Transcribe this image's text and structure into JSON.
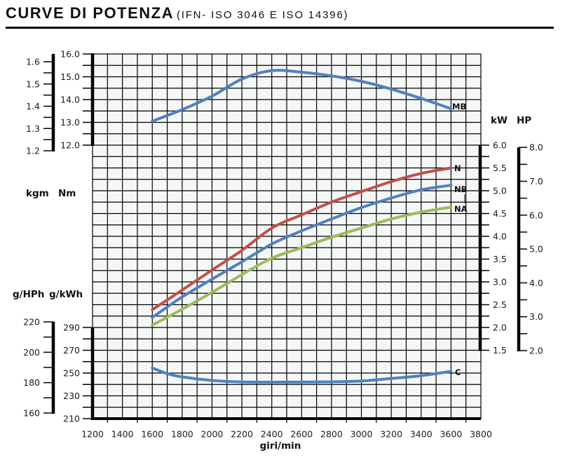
{
  "title": {
    "main": "CURVE DI POTENZA",
    "sub": "(IFN- ISO 3046 E ISO 14396)"
  },
  "chart_data": {
    "type": "line",
    "title": "CURVE DI POTENZA (IFN- ISO 3046 E ISO 14396)",
    "xlabel": "giri/min",
    "xlim": [
      1200,
      3800
    ],
    "x_ticks": [
      "1200",
      "1400",
      "1600",
      "1800",
      "2000",
      "2200",
      "2400",
      "2600",
      "2800",
      "3000",
      "3200",
      "3400",
      "3600",
      "3800"
    ],
    "grid": true,
    "colors": {
      "N": "#c0504d",
      "NB": "#4f81bd",
      "NA": "#9bbb59",
      "MB": "#4f81bd",
      "C": "#4f81bd",
      "grid_bg": "#f5f6f6"
    },
    "axes": {
      "torque_nm": {
        "label": "Nm",
        "ylim": [
          12.0,
          16.0
        ],
        "ticks": [
          "16.0",
          "15.0",
          "14.0",
          "13.0",
          "12.0"
        ]
      },
      "torque_kgm": {
        "label": "kgm",
        "ylim": [
          1.2,
          1.6
        ],
        "ticks": [
          "1.6",
          "1.5",
          "1.4",
          "1.3",
          "1.2"
        ]
      },
      "power_kw": {
        "label": "kW",
        "ylim": [
          1.5,
          6.0
        ],
        "ticks": [
          "6.0",
          "5.5",
          "5.0",
          "4.5",
          "4.0",
          "3.5",
          "3.0",
          "2.5",
          "2.0",
          "1.5"
        ]
      },
      "power_hp": {
        "label": "HP",
        "ylim": [
          2.0,
          8.0
        ],
        "ticks": [
          "8.0",
          "7.0",
          "6.0",
          "5.0",
          "4.0",
          "3.0",
          "2.0"
        ]
      },
      "consumption_gkwh": {
        "label": "g/kWh",
        "ylim": [
          210,
          290
        ],
        "ticks": [
          "290",
          "270",
          "250",
          "230",
          "210"
        ]
      },
      "consumption_ghph": {
        "label": "g/HPh",
        "ylim": [
          160,
          220
        ],
        "ticks": [
          "220",
          "200",
          "180",
          "160"
        ]
      }
    },
    "series": [
      {
        "name": "MB",
        "axis": "torque_nm",
        "x": [
          1600,
          1800,
          2000,
          2200,
          2400,
          2600,
          2800,
          3000,
          3200,
          3400,
          3600
        ],
        "y": [
          13.05,
          13.56,
          14.15,
          14.9,
          15.27,
          15.2,
          15.04,
          14.8,
          14.46,
          14.05,
          13.6
        ]
      },
      {
        "name": "N",
        "axis": "power_kw",
        "x": [
          1600,
          1800,
          2000,
          2200,
          2400,
          2600,
          2800,
          3000,
          3200,
          3400,
          3600
        ],
        "y": [
          2.39,
          2.82,
          3.26,
          3.69,
          4.18,
          4.47,
          4.75,
          4.98,
          5.2,
          5.38,
          5.5
        ]
      },
      {
        "name": "NB",
        "axis": "power_kw",
        "x": [
          1600,
          1800,
          2000,
          2200,
          2400,
          2600,
          2800,
          3000,
          3200,
          3400,
          3600
        ],
        "y": [
          2.22,
          2.67,
          3.06,
          3.44,
          3.83,
          4.12,
          4.38,
          4.63,
          4.84,
          5.02,
          5.12
        ]
      },
      {
        "name": "NA",
        "axis": "power_kw",
        "x": [
          1600,
          1800,
          2000,
          2200,
          2400,
          2600,
          2800,
          3000,
          3200,
          3400,
          3600
        ],
        "y": [
          2.05,
          2.4,
          2.77,
          3.16,
          3.52,
          3.75,
          3.98,
          4.18,
          4.38,
          4.53,
          4.64
        ]
      },
      {
        "name": "C",
        "axis": "consumption_gkwh",
        "x": [
          1600,
          1700,
          1800,
          2000,
          2200,
          2400,
          2800,
          3000,
          3200,
          3400,
          3600
        ],
        "y": [
          254.5,
          249.5,
          246.6,
          243.5,
          242.2,
          242,
          242.3,
          243,
          245.2,
          247.7,
          251.5
        ]
      }
    ]
  }
}
